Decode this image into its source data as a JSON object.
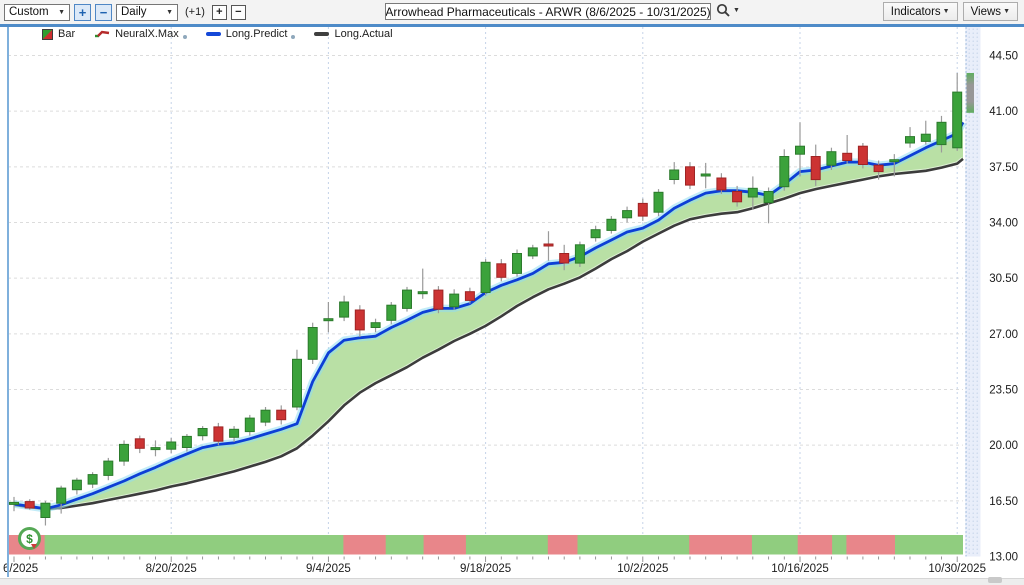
{
  "toolbar": {
    "period_select": "Custom",
    "zoom_in": "+",
    "zoom_out": "−",
    "interval_select": "Daily",
    "offset_label": "(+1)",
    "bar_plus": "+",
    "bar_minus": "−",
    "title": "Arrowhead Pharmaceuticals - ARWR (8/6/2025 - 10/31/2025)",
    "indicators_button": "Indicators",
    "views_button": "Views",
    "caret": "▼"
  },
  "legend": [
    {
      "label": "Bar"
    },
    {
      "label": "NeuralX.Max"
    },
    {
      "label": "Long.Predict"
    },
    {
      "label": "Long.Actual"
    }
  ],
  "colors": {
    "candle_up": "#3ba23b",
    "candle_up_stroke": "#2c7a2c",
    "candle_down": "#cc3333",
    "candle_down_stroke": "#9e2424",
    "wick": "#9a9a9a",
    "predict_line": "#0d3fd6",
    "predict_glow": "#8fdcf2",
    "actual_line": "#3c3c3c",
    "band_fill": "#b9e0a5",
    "strip_green": "#90cd7f",
    "strip_red": "#e8868a",
    "grid": "#dcdcdc",
    "vgrid": "#c5d3e8",
    "axis_text": "#1b1b1b",
    "scroll_track": "#e9eefa",
    "scroll_dot": "#c6d4ea",
    "scroll_border": "#9cb8dc",
    "partial_gray": "#979797",
    "partial_green": "#5fae5f"
  },
  "chart_data": {
    "type": "candlestick",
    "title": "Arrowhead Pharmaceuticals - ARWR",
    "date_range": "8/6/2025 - 10/31/2025",
    "interval": "Daily",
    "grid": true,
    "legend_position": "top-left",
    "ylim": [
      13.0,
      46.3
    ],
    "y_ticks": [
      "44.50",
      "41.00",
      "37.50",
      "34.00",
      "30.50",
      "27.00",
      "23.50",
      "20.00",
      "16.50",
      "13.00"
    ],
    "y_tick_values": [
      44.5,
      41.0,
      37.5,
      34.0,
      30.5,
      27.0,
      23.5,
      20.0,
      16.5,
      13.0
    ],
    "x_ticks": [
      {
        "label": "6/2025",
        "index": 0,
        "align": "left"
      },
      {
        "label": "8/20/2025",
        "index": 10,
        "align": "center"
      },
      {
        "label": "9/4/2025",
        "index": 20,
        "align": "center"
      },
      {
        "label": "9/18/2025",
        "index": 30,
        "align": "center"
      },
      {
        "label": "10/2/2025",
        "index": 40,
        "align": "center"
      },
      {
        "label": "10/16/2025",
        "index": 50,
        "align": "center"
      },
      {
        "label": "10/30/2025",
        "index": 60,
        "align": "center"
      }
    ],
    "dates": [
      "8/6",
      "8/7",
      "8/8",
      "8/11",
      "8/12",
      "8/13",
      "8/14",
      "8/15",
      "8/18",
      "8/19",
      "8/20",
      "8/21",
      "8/22",
      "8/25",
      "8/26",
      "8/27",
      "8/28",
      "8/29",
      "9/2",
      "9/3",
      "9/4",
      "9/5",
      "9/8",
      "9/9",
      "9/10",
      "9/11",
      "9/12",
      "9/15",
      "9/16",
      "9/17",
      "9/18",
      "9/19",
      "9/22",
      "9/23",
      "9/24",
      "9/25",
      "9/26",
      "9/29",
      "9/30",
      "10/1",
      "10/2",
      "10/3",
      "10/6",
      "10/7",
      "10/8",
      "10/9",
      "10/10",
      "10/13",
      "10/14",
      "10/15",
      "10/16",
      "10/17",
      "10/20",
      "10/21",
      "10/22",
      "10/23",
      "10/24",
      "10/27",
      "10/28",
      "10/29",
      "10/30"
    ],
    "candles_ohlc": [
      [
        16.3,
        16.75,
        15.85,
        16.4
      ],
      [
        16.45,
        16.6,
        15.95,
        16.05
      ],
      [
        15.45,
        16.5,
        14.95,
        16.35
      ],
      [
        16.35,
        17.45,
        15.7,
        17.3
      ],
      [
        17.2,
        17.95,
        16.9,
        17.8
      ],
      [
        17.55,
        18.3,
        17.3,
        18.15
      ],
      [
        18.1,
        19.2,
        17.8,
        19.0
      ],
      [
        19.0,
        20.3,
        18.7,
        20.05
      ],
      [
        20.4,
        20.6,
        19.5,
        19.8
      ],
      [
        19.8,
        20.3,
        19.3,
        19.85
      ],
      [
        19.75,
        20.45,
        19.5,
        20.2
      ],
      [
        19.85,
        20.7,
        19.6,
        20.55
      ],
      [
        20.6,
        21.2,
        20.3,
        21.05
      ],
      [
        21.15,
        21.4,
        20.0,
        20.25
      ],
      [
        20.5,
        21.2,
        20.2,
        21.0
      ],
      [
        20.85,
        21.9,
        20.6,
        21.7
      ],
      [
        21.45,
        22.4,
        21.2,
        22.2
      ],
      [
        22.2,
        22.5,
        21.3,
        21.6
      ],
      [
        22.4,
        26.0,
        22.2,
        25.4
      ],
      [
        25.4,
        27.7,
        25.1,
        27.4
      ],
      [
        27.9,
        29.0,
        27.1,
        27.95
      ],
      [
        28.05,
        29.4,
        27.8,
        29.0
      ],
      [
        28.5,
        28.8,
        26.8,
        27.25
      ],
      [
        27.4,
        27.95,
        27.1,
        27.7
      ],
      [
        27.85,
        29.0,
        27.6,
        28.8
      ],
      [
        28.6,
        29.95,
        28.4,
        29.75
      ],
      [
        29.6,
        31.1,
        29.2,
        29.65
      ],
      [
        29.75,
        30.0,
        28.3,
        28.55
      ],
      [
        28.7,
        29.8,
        28.5,
        29.5
      ],
      [
        29.65,
        29.9,
        28.9,
        29.1
      ],
      [
        29.6,
        31.7,
        29.4,
        31.5
      ],
      [
        31.4,
        31.7,
        30.3,
        30.55
      ],
      [
        30.8,
        32.3,
        30.6,
        32.05
      ],
      [
        31.9,
        32.6,
        31.7,
        32.4
      ],
      [
        32.65,
        33.45,
        31.6,
        32.6
      ],
      [
        32.05,
        32.6,
        31.0,
        31.45
      ],
      [
        31.45,
        32.8,
        31.2,
        32.6
      ],
      [
        33.05,
        33.8,
        32.8,
        33.55
      ],
      [
        33.5,
        34.4,
        33.3,
        34.2
      ],
      [
        34.3,
        35.0,
        34.0,
        34.75
      ],
      [
        35.2,
        35.5,
        34.1,
        34.4
      ],
      [
        34.65,
        36.1,
        34.4,
        35.9
      ],
      [
        36.7,
        37.8,
        36.4,
        37.3
      ],
      [
        37.5,
        37.8,
        36.1,
        36.35
      ],
      [
        37.0,
        37.75,
        36.15,
        37.05
      ],
      [
        36.8,
        37.1,
        35.8,
        36.05
      ],
      [
        35.95,
        36.3,
        35.0,
        35.3
      ],
      [
        35.6,
        36.9,
        34.8,
        36.15
      ],
      [
        35.25,
        36.2,
        33.95,
        35.95
      ],
      [
        36.25,
        38.6,
        36.0,
        38.15
      ],
      [
        38.3,
        40.3,
        36.9,
        38.8
      ],
      [
        38.15,
        38.9,
        36.3,
        36.7
      ],
      [
        37.6,
        38.7,
        37.3,
        38.45
      ],
      [
        38.35,
        39.5,
        37.7,
        37.9
      ],
      [
        38.8,
        39.0,
        37.4,
        37.65
      ],
      [
        37.6,
        37.9,
        36.7,
        37.2
      ],
      [
        37.9,
        38.3,
        36.9,
        37.95
      ],
      [
        39.0,
        40.0,
        38.7,
        39.4
      ],
      [
        39.1,
        40.4,
        38.9,
        39.55
      ],
      [
        38.9,
        40.7,
        38.4,
        40.3
      ],
      [
        38.7,
        43.4,
        38.5,
        42.2
      ]
    ],
    "series": [
      {
        "name": "Long.Predict",
        "values": [
          16.3,
          16.15,
          16.0,
          16.25,
          16.6,
          16.95,
          17.35,
          17.75,
          18.2,
          18.6,
          19.05,
          19.45,
          19.85,
          20.05,
          20.15,
          20.4,
          20.7,
          21.0,
          21.35,
          24.0,
          25.8,
          26.6,
          26.75,
          26.85,
          27.4,
          27.85,
          28.35,
          28.6,
          28.6,
          28.9,
          29.6,
          30.05,
          30.4,
          30.8,
          31.4,
          31.5,
          31.85,
          32.4,
          32.9,
          33.4,
          33.65,
          34.15,
          34.9,
          35.4,
          35.85,
          36.0,
          36.0,
          35.9,
          35.7,
          36.4,
          37.2,
          37.3,
          37.55,
          37.8,
          37.8,
          37.6,
          37.7,
          38.2,
          38.7,
          39.15,
          39.6
        ],
        "end_value": 40.3
      },
      {
        "name": "Long.Actual",
        "values": [
          16.25,
          16.1,
          16.0,
          16.05,
          16.2,
          16.35,
          16.55,
          16.75,
          16.95,
          17.15,
          17.4,
          17.6,
          17.85,
          18.1,
          18.35,
          18.65,
          18.95,
          19.3,
          19.8,
          20.6,
          21.5,
          22.5,
          23.3,
          23.9,
          24.4,
          24.9,
          25.5,
          26.0,
          26.55,
          27.0,
          27.5,
          28.1,
          28.75,
          29.3,
          29.8,
          30.15,
          30.55,
          31.1,
          31.7,
          32.2,
          32.8,
          33.3,
          33.8,
          34.2,
          34.4,
          34.55,
          34.65,
          34.9,
          35.2,
          35.5,
          35.85,
          36.1,
          36.3,
          36.5,
          36.7,
          36.9,
          37.05,
          37.15,
          37.25,
          37.45,
          37.7
        ],
        "end_value": 38.0
      }
    ],
    "sentiment_strip": {
      "red_index_ranges": [
        [
          0,
          1.5
        ],
        [
          21.4,
          23.2
        ],
        [
          26.5,
          28.3
        ],
        [
          34.4,
          35.4
        ],
        [
          43.4,
          46.5
        ],
        [
          50.3,
          51.6
        ],
        [
          53.4,
          55.6
        ]
      ]
    },
    "partial_last_bar": {
      "low": 40.9,
      "high": 43.4
    },
    "event_icon": {
      "symbol": "$",
      "index": 1
    }
  }
}
